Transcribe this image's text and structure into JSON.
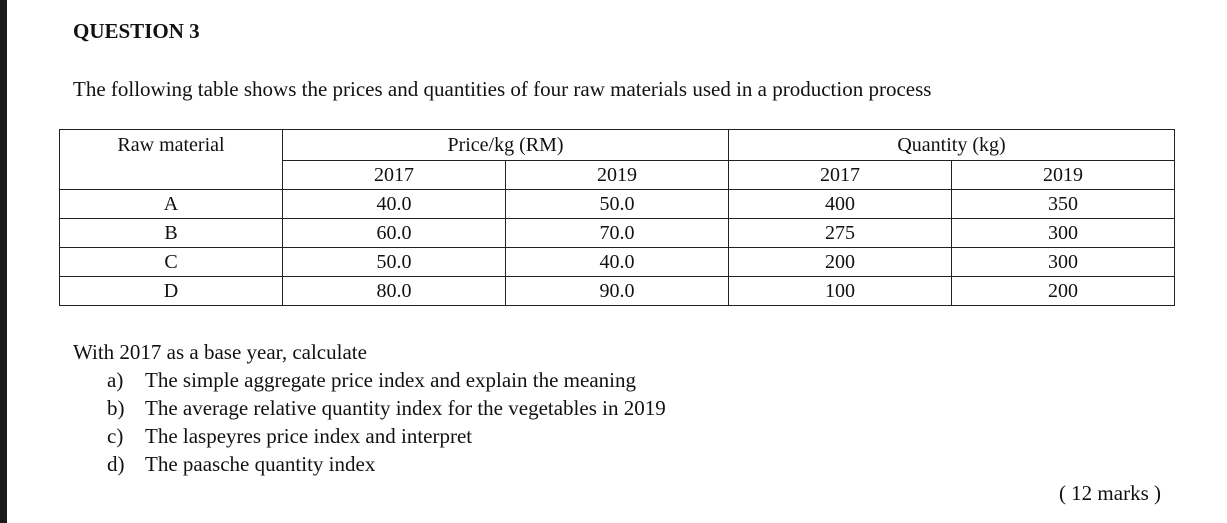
{
  "question": {
    "title": "QUESTION 3",
    "intro": "The following table shows the prices and quantities of four raw materials used in a production process"
  },
  "table": {
    "headers": {
      "raw_material": "Raw material",
      "price": "Price/kg (RM)",
      "quantity": "Quantity (kg)"
    },
    "years": [
      "2017",
      "2019",
      "2017",
      "2019"
    ],
    "rows": [
      [
        "A",
        "40.0",
        "50.0",
        "400",
        "350"
      ],
      [
        "B",
        "60.0",
        "70.0",
        "275",
        "300"
      ],
      [
        "C",
        "50.0",
        "40.0",
        "200",
        "300"
      ],
      [
        "D",
        "80.0",
        "90.0",
        "100",
        "200"
      ]
    ]
  },
  "instructions": {
    "lead": "With 2017 as a base year, calculate",
    "tasks": [
      {
        "letter": "a)",
        "text": "The simple aggregate price index and explain the meaning"
      },
      {
        "letter": "b)",
        "text": "The average relative quantity index for the vegetables in 2019"
      },
      {
        "letter": "c)",
        "text": "The laspeyres price index and interpret"
      },
      {
        "letter": "d)",
        "text": "The paasche quantity index"
      }
    ]
  },
  "marks": "( 12 marks )"
}
